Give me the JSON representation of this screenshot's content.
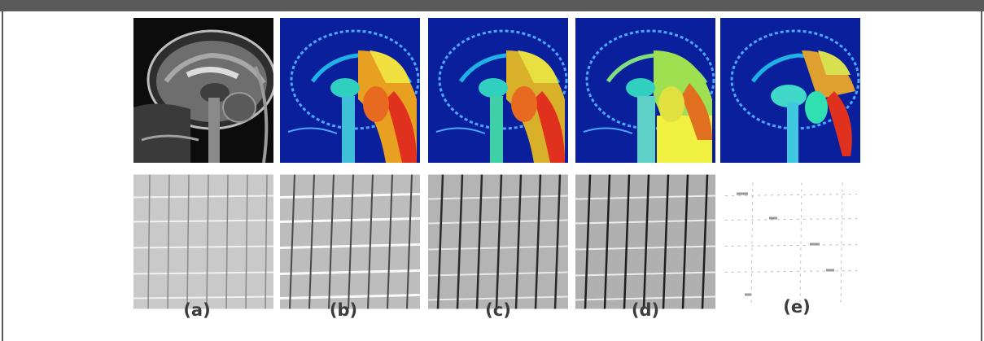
{
  "figure": {
    "panel_labels": [
      "(a)",
      "(b)",
      "(c)",
      "(d)",
      "(e)"
    ],
    "rows": [
      {
        "subject": "sagittal-brain-mri",
        "panels": [
          "grayscale-original",
          "jet-colormap-segmentation",
          "jet-colormap-segmentation",
          "jet-colormap-segmentation",
          "jet-colormap-segmentation"
        ]
      },
      {
        "subject": "brick-wall-texture",
        "panels": [
          "grayscale-original",
          "grayscale-result",
          "grayscale-result",
          "grayscale-result",
          "sparse-white-result"
        ]
      }
    ],
    "colors": {
      "frame": "#5a5a5a",
      "label_text": "#3c3c3c",
      "jet_low": "#0a1f9c",
      "jet_high": "#e0301e"
    }
  }
}
